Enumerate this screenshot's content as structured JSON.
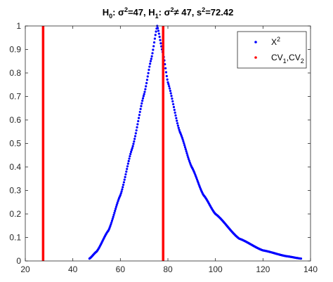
{
  "chart_data": {
    "type": "scatter",
    "title": {
      "segments": [
        {
          "text": "H",
          "style": "normal"
        },
        {
          "text": "0",
          "style": "sub"
        },
        {
          "text": ": σ",
          "style": "normal"
        },
        {
          "text": "2",
          "style": "sup"
        },
        {
          "text": "=47,  H",
          "style": "normal"
        },
        {
          "text": "1",
          "style": "sub"
        },
        {
          "text": ": σ",
          "style": "normal"
        },
        {
          "text": "2",
          "style": "sup"
        },
        {
          "text": "≠ 47,  s",
          "style": "normal"
        },
        {
          "text": "2",
          "style": "sup"
        },
        {
          "text": "=72.42",
          "style": "normal"
        }
      ]
    },
    "xlabel": "",
    "ylabel": "",
    "xlim": [
      20,
      140
    ],
    "ylim": [
      0,
      1
    ],
    "xticks": [
      20,
      40,
      60,
      80,
      100,
      120,
      140
    ],
    "yticks": [
      0,
      0.1,
      0.2,
      0.3,
      0.4,
      0.5,
      0.6,
      0.7,
      0.8,
      0.9,
      1
    ],
    "grid": false,
    "legend": {
      "location": "top-right",
      "entries": [
        {
          "series": "chi2",
          "segments": [
            {
              "text": "X",
              "style": "normal"
            },
            {
              "text": "2",
              "style": "sup"
            }
          ]
        },
        {
          "series": "cv",
          "segments": [
            {
              "text": "CV",
              "style": "normal"
            },
            {
              "text": "1",
              "style": "sub"
            },
            {
              "text": ",CV",
              "style": "normal"
            },
            {
              "text": "2",
              "style": "sub"
            }
          ]
        }
      ]
    },
    "series": [
      {
        "id": "chi2",
        "color": "#0000ff",
        "marker": "point",
        "x_start": 47,
        "x_end": 136,
        "peak_x": 75.5,
        "peak_y": 1.0,
        "points": [
          {
            "x": 47,
            "y": 0.01
          },
          {
            "x": 50,
            "y": 0.04
          },
          {
            "x": 55,
            "y": 0.13
          },
          {
            "x": 60,
            "y": 0.28
          },
          {
            "x": 65,
            "y": 0.48
          },
          {
            "x": 70,
            "y": 0.71
          },
          {
            "x": 73,
            "y": 0.86
          },
          {
            "x": 75.5,
            "y": 1.0
          },
          {
            "x": 78,
            "y": 0.88
          },
          {
            "x": 80,
            "y": 0.76
          },
          {
            "x": 85,
            "y": 0.55
          },
          {
            "x": 90,
            "y": 0.4
          },
          {
            "x": 95,
            "y": 0.28
          },
          {
            "x": 100,
            "y": 0.2
          },
          {
            "x": 110,
            "y": 0.095
          },
          {
            "x": 120,
            "y": 0.045
          },
          {
            "x": 130,
            "y": 0.02
          },
          {
            "x": 136,
            "y": 0.01
          }
        ]
      },
      {
        "id": "cv",
        "color": "#ff0000",
        "marker": "vertical-line",
        "lines": [
          {
            "x": 27.5,
            "y_from": 0,
            "y_to": 1
          },
          {
            "x": 78.0,
            "y_from": 0,
            "y_to": 1
          }
        ]
      }
    ]
  }
}
